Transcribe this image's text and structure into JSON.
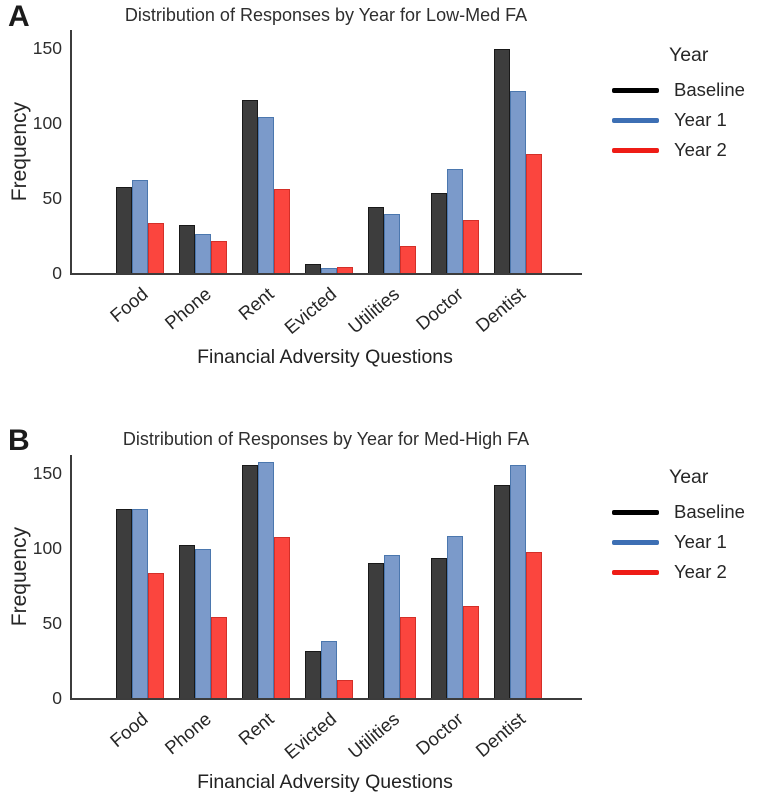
{
  "figure": {
    "background": "#ffffff",
    "axis_color": "#3c3c3c",
    "text_color": "#262626"
  },
  "chart_data": [
    {
      "type": "bar",
      "panel_label": "A",
      "title": "Distribution of Responses by Year for Low-Med FA",
      "xlabel": "Financial Adversity Questions",
      "ylabel": "Frequency",
      "ylim": [
        0,
        162
      ],
      "yticks": [
        0,
        50,
        100,
        150
      ],
      "grid": false,
      "legend_title": "Year",
      "legend_position": "right",
      "categories": [
        "Food",
        "Phone",
        "Rent",
        "Evicted",
        "Utilities",
        "Doctor",
        "Dentist"
      ],
      "series": [
        {
          "name": "Baseline",
          "fill": "#3d3d3d",
          "edge": "#191919",
          "legend_line": "#000000",
          "values": [
            57,
            32,
            115,
            6,
            44,
            53,
            149
          ]
        },
        {
          "name": "Year 1",
          "fill": "#7b9aca",
          "edge": "#4b77ae",
          "legend_line": "#3d6fb4",
          "values": [
            62,
            26,
            104,
            3,
            39,
            69,
            121
          ]
        },
        {
          "name": "Year 2",
          "fill": "#fb453e",
          "edge": "#d32f28",
          "legend_line": "#ee1c16",
          "values": [
            33,
            21,
            56,
            4,
            18,
            35,
            79
          ]
        }
      ]
    },
    {
      "type": "bar",
      "panel_label": "B",
      "title": "Distribution of Responses by Year for Med-High FA",
      "xlabel": "Financial Adversity Questions",
      "ylabel": "Frequency",
      "ylim": [
        0,
        162
      ],
      "yticks": [
        0,
        50,
        100,
        150
      ],
      "grid": false,
      "legend_title": "Year",
      "legend_position": "right",
      "categories": [
        "Food",
        "Phone",
        "Rent",
        "Evicted",
        "Utilities",
        "Doctor",
        "Dentist"
      ],
      "series": [
        {
          "name": "Baseline",
          "fill": "#3d3d3d",
          "edge": "#191919",
          "legend_line": "#000000",
          "values": [
            126,
            102,
            155,
            31,
            90,
            93,
            142
          ]
        },
        {
          "name": "Year 1",
          "fill": "#7b9aca",
          "edge": "#4b77ae",
          "legend_line": "#3d6fb4",
          "values": [
            126,
            99,
            157,
            38,
            95,
            108,
            155
          ]
        },
        {
          "name": "Year 2",
          "fill": "#fb453e",
          "edge": "#d32f28",
          "legend_line": "#ee1c16",
          "values": [
            83,
            54,
            107,
            12,
            54,
            61,
            97
          ]
        }
      ]
    }
  ]
}
